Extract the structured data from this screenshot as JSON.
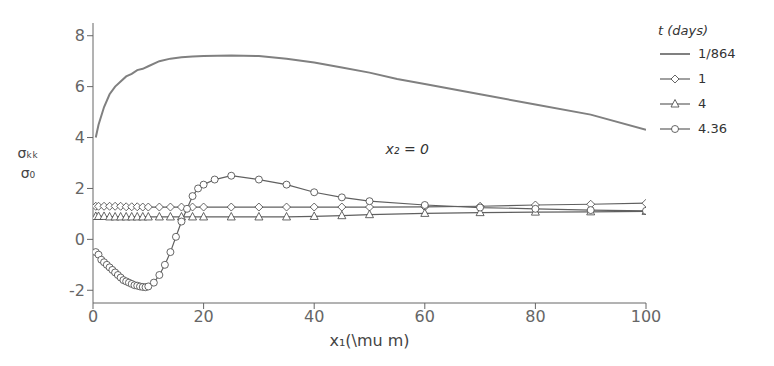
{
  "chart_data": {
    "type": "line",
    "xlabel": "x₁(\\mu m)",
    "ylabel": "σₖₖ\nσ₀",
    "annotation": "x₂ = 0",
    "legend_title": "t (days)",
    "legend": "right",
    "grid": false,
    "xlim": [
      0,
      100
    ],
    "ylim": [
      -2.5,
      8.5
    ],
    "xticks": [
      0,
      20,
      40,
      60,
      80,
      100
    ],
    "yticks": [
      -2,
      0,
      2,
      4,
      6,
      8
    ],
    "series": [
      {
        "name": "1/864",
        "color": "#808080",
        "marker": "none",
        "line_style": "solid",
        "x": [
          0.5,
          1,
          2,
          3,
          4,
          5,
          6,
          7,
          8,
          9,
          10,
          12,
          14,
          16,
          18,
          20,
          25,
          30,
          35,
          40,
          45,
          50,
          55,
          60,
          70,
          80,
          90,
          100
        ],
        "values": [
          4.0,
          4.5,
          5.2,
          5.7,
          6.0,
          6.2,
          6.4,
          6.5,
          6.65,
          6.7,
          6.8,
          7.0,
          7.1,
          7.15,
          7.18,
          7.2,
          7.22,
          7.2,
          7.1,
          6.95,
          6.75,
          6.55,
          6.3,
          6.1,
          5.7,
          5.3,
          4.9,
          4.3
        ]
      },
      {
        "name": "1",
        "color": "#606060",
        "marker": "diamond",
        "line_style": "solid",
        "x": [
          0.5,
          1,
          2,
          3,
          4,
          5,
          6,
          7,
          8,
          9,
          10,
          12,
          14,
          16,
          18,
          20,
          25,
          30,
          35,
          40,
          45,
          50,
          60,
          70,
          80,
          90,
          100
        ],
        "values": [
          1.3,
          1.3,
          1.3,
          1.3,
          1.3,
          1.3,
          1.28,
          1.28,
          1.28,
          1.27,
          1.27,
          1.27,
          1.27,
          1.27,
          1.27,
          1.27,
          1.27,
          1.27,
          1.27,
          1.27,
          1.27,
          1.27,
          1.28,
          1.3,
          1.35,
          1.38,
          1.42
        ]
      },
      {
        "name": "4",
        "color": "#606060",
        "marker": "triangle",
        "line_style": "solid",
        "x": [
          0.5,
          1,
          2,
          3,
          4,
          5,
          6,
          7,
          8,
          9,
          10,
          12,
          14,
          16,
          18,
          20,
          25,
          30,
          35,
          40,
          45,
          50,
          60,
          70,
          80,
          90,
          100
        ],
        "values": [
          0.9,
          0.9,
          0.9,
          0.88,
          0.88,
          0.88,
          0.88,
          0.88,
          0.88,
          0.88,
          0.88,
          0.88,
          0.88,
          0.88,
          0.88,
          0.88,
          0.88,
          0.88,
          0.88,
          0.9,
          0.93,
          0.97,
          1.02,
          1.05,
          1.07,
          1.08,
          1.1
        ]
      },
      {
        "name": "4.36",
        "color": "#606060",
        "marker": "circle",
        "line_style": "solid",
        "x": [
          0.5,
          1,
          1.5,
          2,
          2.5,
          3,
          3.5,
          4,
          4.5,
          5,
          5.5,
          6,
          6.5,
          7,
          7.5,
          8,
          8.5,
          9,
          9.5,
          10,
          11,
          12,
          13,
          14,
          15,
          16,
          17,
          18,
          19,
          20,
          22,
          25,
          30,
          35,
          40,
          45,
          50,
          60,
          70,
          80,
          90,
          100
        ],
        "values": [
          -0.5,
          -0.6,
          -0.8,
          -0.9,
          -1.0,
          -1.1,
          -1.2,
          -1.3,
          -1.4,
          -1.5,
          -1.6,
          -1.65,
          -1.7,
          -1.75,
          -1.8,
          -1.82,
          -1.85,
          -1.87,
          -1.88,
          -1.85,
          -1.7,
          -1.4,
          -1.0,
          -0.5,
          0.1,
          0.7,
          1.2,
          1.7,
          2.0,
          2.15,
          2.35,
          2.5,
          2.35,
          2.15,
          1.85,
          1.65,
          1.5,
          1.35,
          1.25,
          1.2,
          1.15,
          1.12
        ]
      }
    ]
  }
}
